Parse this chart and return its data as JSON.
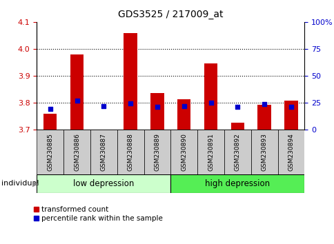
{
  "title": "GDS3525 / 217009_at",
  "samples": [
    "GSM230885",
    "GSM230886",
    "GSM230887",
    "GSM230888",
    "GSM230889",
    "GSM230890",
    "GSM230891",
    "GSM230892",
    "GSM230893",
    "GSM230894"
  ],
  "red_values": [
    3.758,
    3.978,
    3.7,
    4.058,
    3.835,
    3.812,
    3.945,
    3.725,
    3.792,
    3.808
  ],
  "blue_values": [
    3.775,
    3.808,
    3.787,
    3.797,
    3.785,
    3.787,
    3.8,
    3.783,
    3.793,
    3.784
  ],
  "bar_base": 3.7,
  "ylim_left": [
    3.7,
    4.1
  ],
  "ylim_right": [
    0,
    100
  ],
  "yticks_left": [
    3.7,
    3.8,
    3.9,
    4.0,
    4.1
  ],
  "yticks_right": [
    0,
    25,
    50,
    75,
    100
  ],
  "ytick_labels_right": [
    "0",
    "25",
    "50",
    "75",
    "100%"
  ],
  "red_color": "#cc0000",
  "blue_color": "#0000cc",
  "group_colors": [
    "#ccffcc",
    "#55ee55"
  ],
  "legend_labels": [
    "transformed count",
    "percentile rank within the sample"
  ],
  "bar_width": 0.5,
  "figsize": [
    4.85,
    3.54
  ],
  "dpi": 100
}
